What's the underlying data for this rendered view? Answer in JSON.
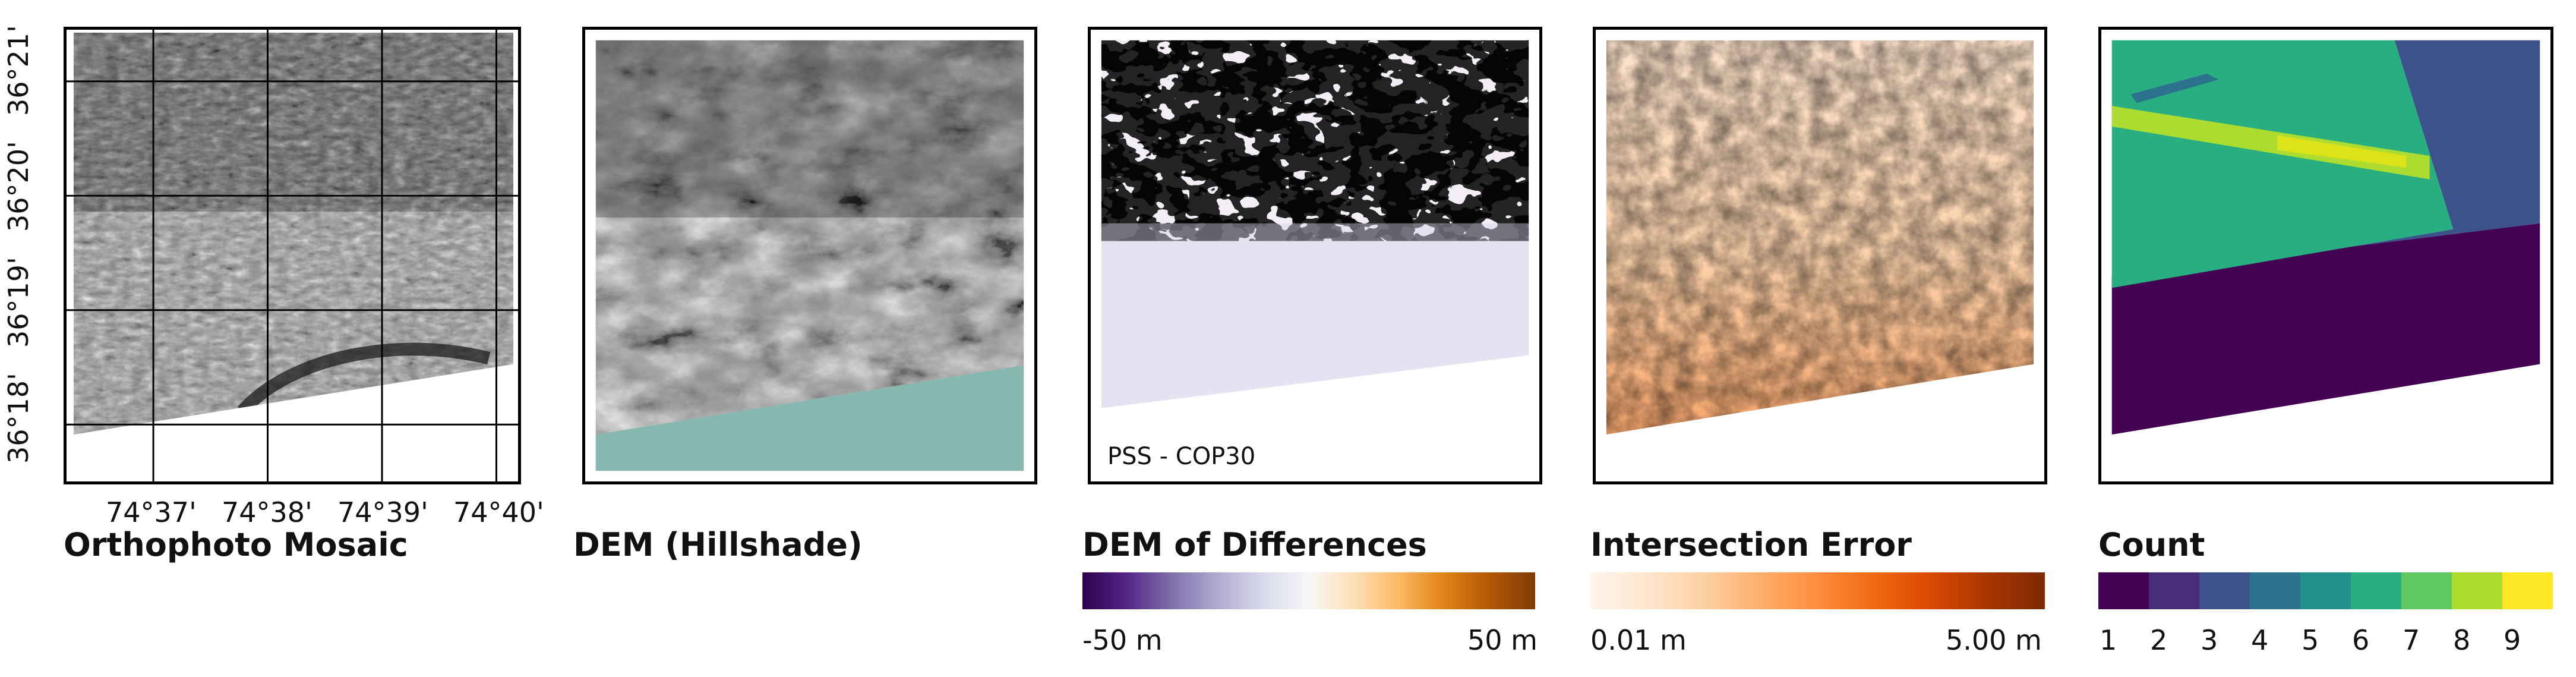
{
  "panels": {
    "ortho": {
      "title": "Orthophoto Mosaic",
      "x_ticks": [
        "74°37'",
        "74°38'",
        "74°39'",
        "74°40'"
      ],
      "y_ticks": [
        "36°21'",
        "36°20'",
        "36°19'",
        "36°18'"
      ]
    },
    "dem": {
      "title": "DEM (Hillshade)"
    },
    "dod": {
      "title": "DEM of Differences",
      "inset_label": "PSS - COP30",
      "legend_min": "-50 m",
      "legend_max": "50 m"
    },
    "err": {
      "title": "Intersection Error",
      "legend_min": "0.01 m",
      "legend_max": "5.00 m"
    },
    "count": {
      "title": "Count",
      "legend_labels": [
        "1",
        "2",
        "3",
        "4",
        "5",
        "6",
        "7",
        "8",
        "9"
      ],
      "legend_colors": [
        "#440154",
        "#472d7b",
        "#3b528b",
        "#2c728e",
        "#21918c",
        "#28ae80",
        "#5ec962",
        "#addc30",
        "#fde725"
      ]
    }
  },
  "colors": {
    "water": "#86b8b0",
    "dod_low": "#2d004b",
    "dod_mid": "#f7f7f7",
    "dod_high": "#7f3b08",
    "err_low": "#fff5eb",
    "err_high": "#7f2704"
  }
}
